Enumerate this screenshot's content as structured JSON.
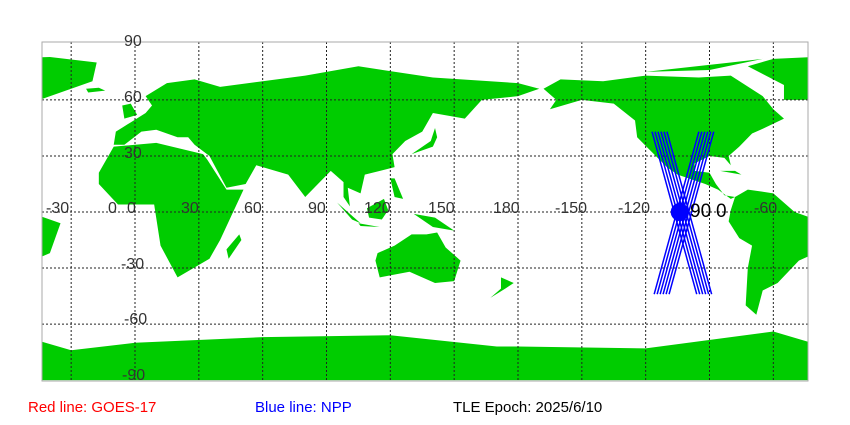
{
  "map": {
    "land_color": "#00cc00",
    "grid_lon": [
      -30,
      0,
      30,
      60,
      90,
      120,
      150,
      180,
      -150,
      -120,
      -90,
      -60
    ],
    "grid_lat": [
      60,
      30,
      0,
      -30,
      -60
    ],
    "lon_labels": [
      "-30",
      "0",
      "30",
      "60",
      "90",
      "120",
      "150",
      "180",
      "-150",
      "-120",
      "-60"
    ],
    "lat_labels": [
      "90",
      "60",
      "30",
      "0",
      "-30",
      "-60",
      "-90"
    ],
    "marker_overlap_labels": [
      "90",
      "0"
    ],
    "satellite_npp": {
      "color": "#0000ff",
      "lon": -104,
      "lat": 0
    },
    "track_color": "#0000ff"
  },
  "legend": {
    "red_line": "Red line: GOES-17",
    "red_color": "#ff0000",
    "blue_line": "Blue line: NPP",
    "blue_color": "#0000ff",
    "tle_epoch": "TLE Epoch: 2025/6/10"
  }
}
